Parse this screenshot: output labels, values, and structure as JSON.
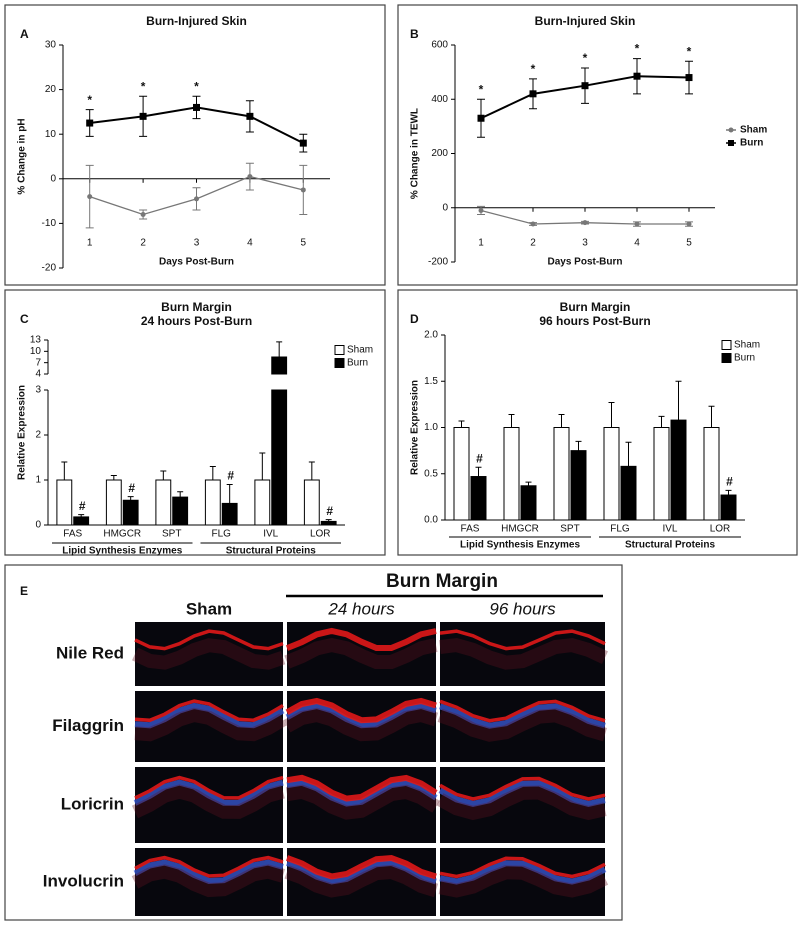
{
  "chart_data": [
    {
      "type": "line",
      "panel": "A",
      "title": "Burn-Injured Skin",
      "x_label": "Days Post-Burn",
      "y_label": "% Change in pH",
      "x": [
        1,
        2,
        3,
        4,
        5
      ],
      "xlim": [
        0.5,
        5.5
      ],
      "xticks": [
        1,
        2,
        3,
        4,
        5
      ],
      "ylim": [
        -20,
        30
      ],
      "yticks": [
        -20,
        -10,
        0,
        10,
        20,
        30
      ],
      "zero_line": true,
      "series": [
        {
          "color": "#777777",
          "marker": "circle",
          "values": [
            -4,
            -8,
            -4.5,
            0.5,
            -2.5
          ],
          "errors": [
            7,
            1,
            2.5,
            3,
            5.5
          ]
        },
        {
          "color": "#000000",
          "marker": "square",
          "values": [
            12.5,
            14,
            16,
            14,
            8
          ],
          "errors": [
            3,
            4.5,
            2.5,
            3.5,
            2
          ],
          "markers": [
            "*",
            "*",
            "*",
            null,
            null
          ]
        }
      ]
    },
    {
      "type": "line",
      "panel": "B",
      "title": "Burn-Injured Skin",
      "x_label": "Days Post-Burn",
      "y_label": "% Change in TEWL",
      "x": [
        1,
        2,
        3,
        4,
        5
      ],
      "xlim": [
        0.5,
        5.5
      ],
      "xticks": [
        1,
        2,
        3,
        4,
        5
      ],
      "ylim": [
        -200,
        600
      ],
      "yticks": [
        -200,
        0,
        200,
        400,
        600
      ],
      "zero_line": true,
      "legend": "right",
      "series": [
        {
          "name": "Sham",
          "color": "#777777",
          "marker": "circle",
          "values": [
            -10,
            -60,
            -55,
            -60,
            -60
          ],
          "errors": [
            15,
            5,
            5,
            8,
            8
          ]
        },
        {
          "name": "Burn",
          "color": "#000000",
          "marker": "square",
          "values": [
            330,
            420,
            450,
            485,
            480
          ],
          "errors": [
            70,
            55,
            65,
            65,
            60
          ],
          "markers": [
            "*",
            "*",
            "*",
            "*",
            "*"
          ]
        }
      ]
    },
    {
      "type": "bar",
      "panel": "C",
      "title": "Burn Margin",
      "subtitle": "24 hours Post-Burn",
      "y_label": "Relative Expression",
      "categories": [
        "FAS",
        "HMGCR",
        "SPT",
        "FLG",
        "IVL",
        "LOR"
      ],
      "y_segments": [
        {
          "lim": [
            0,
            3
          ],
          "ticks": [
            0,
            1,
            2,
            3
          ]
        },
        {
          "lim": [
            4,
            13
          ],
          "ticks": [
            4,
            7,
            10,
            13
          ]
        }
      ],
      "groups": [
        {
          "label": "Lipid Synthesis Enzymes",
          "start": 0,
          "end": 2
        },
        {
          "label": "Structural Proteins",
          "start": 3,
          "end": 5
        }
      ],
      "legend": "top-right",
      "series": [
        {
          "name": "Sham",
          "color": "#ffffff",
          "values": [
            1,
            1,
            1,
            1,
            1,
            1
          ],
          "errors": [
            0.4,
            0.1,
            0.2,
            0.3,
            0.6,
            0.4
          ]
        },
        {
          "name": "Burn",
          "color": "#000000",
          "values": [
            0.18,
            0.55,
            0.62,
            0.48,
            8.5,
            0.08
          ],
          "errors": [
            0.05,
            0.08,
            0.12,
            0.42,
            4,
            0.04
          ],
          "markers": [
            "#",
            "#",
            null,
            "#",
            null,
            "#"
          ]
        }
      ]
    },
    {
      "type": "bar",
      "panel": "D",
      "title": "Burn Margin",
      "subtitle": "96 hours Post-Burn",
      "y_label": "Relative Expression",
      "categories": [
        "FAS",
        "HMGCR",
        "SPT",
        "FLG",
        "IVL",
        "LOR"
      ],
      "ylim": [
        0,
        2
      ],
      "yticks": [
        {
          "value": 0,
          "label": "0.0"
        },
        0.5,
        {
          "value": 1,
          "label": "1.0"
        },
        1.5,
        {
          "value": 2,
          "label": "2.0"
        }
      ],
      "groups": [
        {
          "label": "Lipid Synthesis Enzymes",
          "start": 0,
          "end": 2
        },
        {
          "label": "Structural Proteins",
          "start": 3,
          "end": 5
        }
      ],
      "legend": "top-right",
      "series": [
        {
          "name": "Sham",
          "color": "#ffffff",
          "values": [
            1,
            1,
            1,
            1,
            1,
            1
          ],
          "errors": [
            0.07,
            0.14,
            0.14,
            0.27,
            0.12,
            0.23
          ]
        },
        {
          "name": "Burn",
          "color": "#000000",
          "values": [
            0.47,
            0.37,
            0.75,
            0.58,
            1.08,
            0.27
          ],
          "errors": [
            0.1,
            0.04,
            0.1,
            0.26,
            0.42,
            0.05
          ],
          "markers": [
            "#",
            null,
            null,
            null,
            null,
            "#"
          ]
        }
      ]
    }
  ],
  "image_panel": {
    "panel": "E",
    "title": "Burn Margin",
    "columns": [
      "Sham",
      "24 hours",
      "96 hours"
    ],
    "rows": [
      "Nile Red",
      "Filaggrin",
      "Loricrin",
      "Involucrin"
    ]
  }
}
